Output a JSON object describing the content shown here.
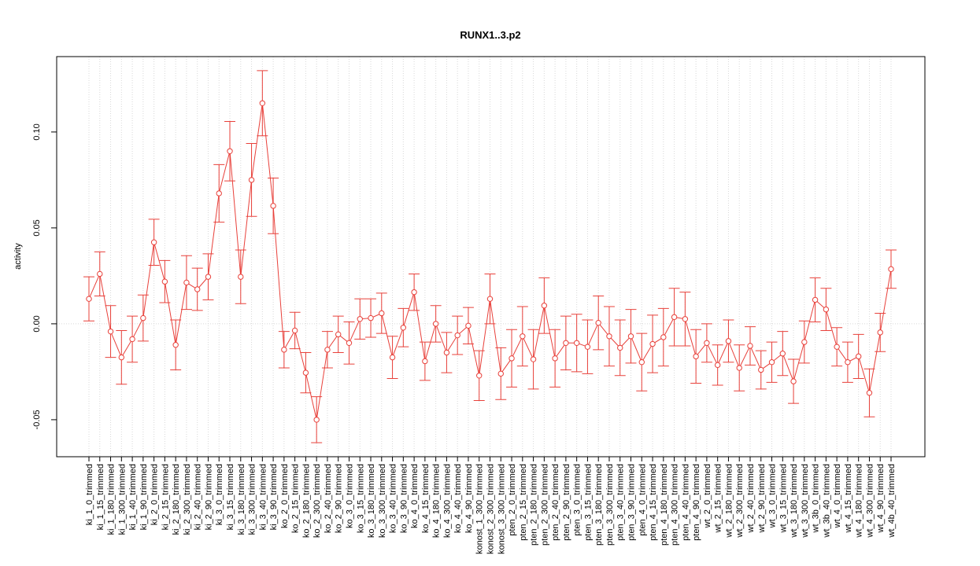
{
  "chart_data": {
    "type": "errorbar-line",
    "title": "RUNX1..3.p2",
    "ylabel": "activity",
    "color": "#e8403a",
    "grid": true,
    "ylim": [
      -0.0693,
      0.1393
    ],
    "yticks": [
      -0.05,
      {
        "value": 0,
        "label": "0.00"
      },
      0.05,
      {
        "value": 0.1,
        "label": "0.10"
      }
    ],
    "categories": [
      "ki_1_0_trimmed",
      "ki_1_15_trimmed",
      "ki_1_180_trimmed",
      "ki_1_300_trimmed",
      "ki_1_40_trimmed",
      "ki_1_90_trimmed",
      "ki_2_0_trimmed",
      "ki_2_15_trimmed",
      "ki_2_180_trimmed",
      "ki_2_300_trimmed",
      "ki_2_40_trimmed",
      "ki_2_90_trimmed",
      "ki_3_0_trimmed",
      "ki_3_15_trimmed",
      "ki_3_180_trimmed",
      "ki_3_300_trimmed",
      "ki_3_40_trimmed",
      "ki_3_90_trimmed",
      "ko_2_0_trimmed",
      "ko_2_15_trimmed",
      "ko_2_180_trimmed",
      "ko_2_300_trimmed",
      "ko_2_40_trimmed",
      "ko_2_90_trimmed",
      "ko_3_0_trimmed",
      "ko_3_15_trimmed",
      "ko_3_180_trimmed",
      "ko_3_300_trimmed",
      "ko_3_40_trimmed",
      "ko_3_90_trimmed",
      "ko_4_0_trimmed",
      "ko_4_15_trimmed",
      "ko_4_180_trimmed",
      "ko_4_300_trimmed",
      "ko_4_40_trimmed",
      "ko_4_90_trimmed",
      "konost_1_300_trimmed",
      "konost_2_300_trimmed",
      "konost_3_300_trimmed",
      "pten_2_0_trimmed",
      "pten_2_15_trimmed",
      "pten_2_180_trimmed",
      "pten_2_300_trimmed",
      "pten_2_40_trimmed",
      "pten_2_90_trimmed",
      "pten_3_0_trimmed",
      "pten_3_15_trimmed",
      "pten_3_180_trimmed",
      "pten_3_300_trimmed",
      "pten_3_40_trimmed",
      "pten_3_90_trimmed",
      "pten_4_0_trimmed",
      "pten_4_15_trimmed",
      "pten_4_180_trimmed",
      "pten_4_300_trimmed",
      "pten_4_40_trimmed",
      "pten_4_90_trimmed",
      "wt_2_0_trimmed",
      "wt_2_15_trimmed",
      "wt_2_180_trimmed",
      "wt_2_300_trimmed",
      "wt_2_40_trimmed",
      "wt_2_90_trimmed",
      "wt_3_0_trimmed",
      "wt_3_15_trimmed",
      "wt_3_180_trimmed",
      "wt_3_300_trimmed",
      "wt_3b_0_trimmed",
      "wt_3b_40_trimmed",
      "wt_4_0_trimmed",
      "wt_4_15_trimmed",
      "wt_4_180_trimmed",
      "wt_4_300_trimmed",
      "wt_4_90_trimmed",
      "wt_4b_40_trimmed"
    ],
    "values": [
      0.013,
      0.026,
      -0.004,
      -0.0175,
      -0.008,
      0.003,
      0.0425,
      0.022,
      -0.011,
      0.0215,
      0.018,
      0.0245,
      0.068,
      0.09,
      0.0245,
      0.075,
      0.115,
      0.0615,
      -0.0135,
      -0.0035,
      -0.0255,
      -0.05,
      -0.0135,
      -0.0055,
      -0.01,
      0.0025,
      0.003,
      0.0055,
      -0.0175,
      -0.002,
      0.0165,
      -0.0195,
      0,
      -0.015,
      -0.006,
      -0.001,
      -0.027,
      0.013,
      -0.026,
      -0.018,
      -0.0065,
      -0.0185,
      0.0095,
      -0.018,
      -0.01,
      -0.01,
      -0.012,
      0.0005,
      -0.0065,
      -0.0125,
      -0.0065,
      -0.02,
      -0.0105,
      -0.007,
      0.0035,
      0.0025,
      -0.017,
      -0.01,
      -0.0215,
      -0.009,
      -0.023,
      -0.0115,
      -0.024,
      -0.02,
      -0.0155,
      -0.03,
      -0.0095,
      0.0125,
      0.0075,
      -0.012,
      -0.02,
      -0.017,
      -0.036,
      -0.0045,
      0.0285
    ],
    "errors": [
      0.0115,
      0.0115,
      0.0135,
      0.014,
      0.012,
      0.012,
      0.012,
      0.011,
      0.013,
      0.014,
      0.011,
      0.012,
      0.015,
      0.0155,
      0.014,
      0.019,
      0.017,
      0.0145,
      0.0095,
      0.0095,
      0.0105,
      0.012,
      0.0095,
      0.0095,
      0.011,
      0.0105,
      0.01,
      0.0105,
      0.011,
      0.01,
      0.0095,
      0.01,
      0.0095,
      0.0105,
      0.01,
      0.0095,
      0.013,
      0.013,
      0.0135,
      0.015,
      0.0155,
      0.0155,
      0.0145,
      0.015,
      0.014,
      0.015,
      0.014,
      0.014,
      0.0155,
      0.0145,
      0.014,
      0.015,
      0.015,
      0.015,
      0.015,
      0.014,
      0.014,
      0.01,
      0.0105,
      0.011,
      0.012,
      0.01,
      0.01,
      0.0105,
      0.0115,
      0.0115,
      0.011,
      0.0115,
      0.011,
      0.01,
      0.0105,
      0.0115,
      0.0125,
      0.01,
      0.01
    ]
  }
}
